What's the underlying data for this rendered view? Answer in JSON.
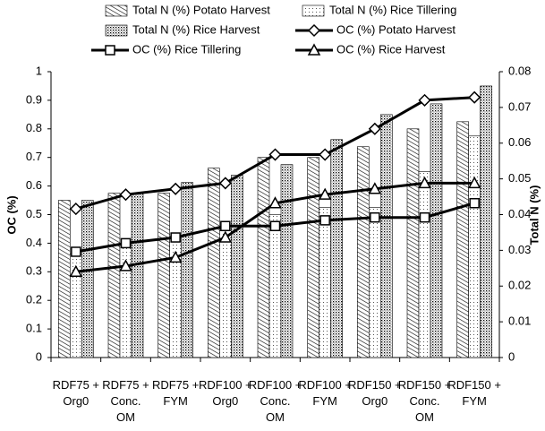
{
  "chart_data": {
    "type": "bar",
    "categories": [
      "RDF75 +\nOrg0",
      "RDF75 +\nConc.\nOM",
      "RDF75 +\nFYM",
      "RDF100 +\nOrg0",
      "RDF100 +\nConc.\nOM",
      "RDF100 +\nFYM",
      "RDF150 +\nOrg0",
      "RDF150 +\nConc.\nOM",
      "RDF150 +\nFYM"
    ],
    "ylabel": "OC (%)",
    "y2label": "Total N (%)",
    "ylim": [
      0,
      1
    ],
    "yticks": [
      0,
      0.1,
      0.2,
      0.3,
      0.4,
      0.5,
      0.6,
      0.7,
      0.8,
      0.9,
      1
    ],
    "y2lim": [
      0,
      0.08
    ],
    "y2ticks": [
      0,
      0.01,
      0.02,
      0.03,
      0.04,
      0.05,
      0.06,
      0.07,
      0.08
    ],
    "series": [
      {
        "name": "Total N (%) Potato Harvest",
        "type": "bar",
        "axis": "y2",
        "color": "#000000",
        "pattern": "diagonal",
        "values": [
          0.044,
          0.046,
          0.046,
          0.053,
          0.056,
          0.056,
          0.059,
          0.064,
          0.066
        ]
      },
      {
        "name": "Total N (%) Rice Tillering",
        "type": "bar",
        "axis": "y2",
        "color": "#000000",
        "pattern": "dots",
        "values": [
          0.029,
          0.032,
          0.034,
          0.036,
          0.04,
          0.042,
          0.042,
          0.052,
          0.062
        ]
      },
      {
        "name": "Total N (%) Rice Harvest",
        "type": "bar",
        "axis": "y2",
        "color": "#000000",
        "pattern": "dense-dots",
        "values": [
          0.044,
          0.046,
          0.049,
          0.051,
          0.054,
          0.061,
          0.068,
          0.071,
          0.076
        ]
      },
      {
        "name": "OC (%) Potato Harvest",
        "type": "line",
        "color": "#000000",
        "marker": "diamond",
        "values": [
          0.52,
          0.57,
          0.59,
          0.61,
          0.71,
          0.71,
          0.8,
          0.9,
          0.91
        ]
      },
      {
        "name": "OC (%) Rice Tillering",
        "type": "line",
        "color": "#000000",
        "marker": "square",
        "values": [
          0.37,
          0.4,
          0.42,
          0.46,
          0.46,
          0.48,
          0.49,
          0.49,
          0.54
        ]
      },
      {
        "name": "OC (%) Rice Harvest",
        "type": "line",
        "color": "#000000",
        "marker": "triangle",
        "values": [
          0.3,
          0.32,
          0.35,
          0.42,
          0.54,
          0.57,
          0.59,
          0.61,
          0.61
        ]
      }
    ]
  }
}
